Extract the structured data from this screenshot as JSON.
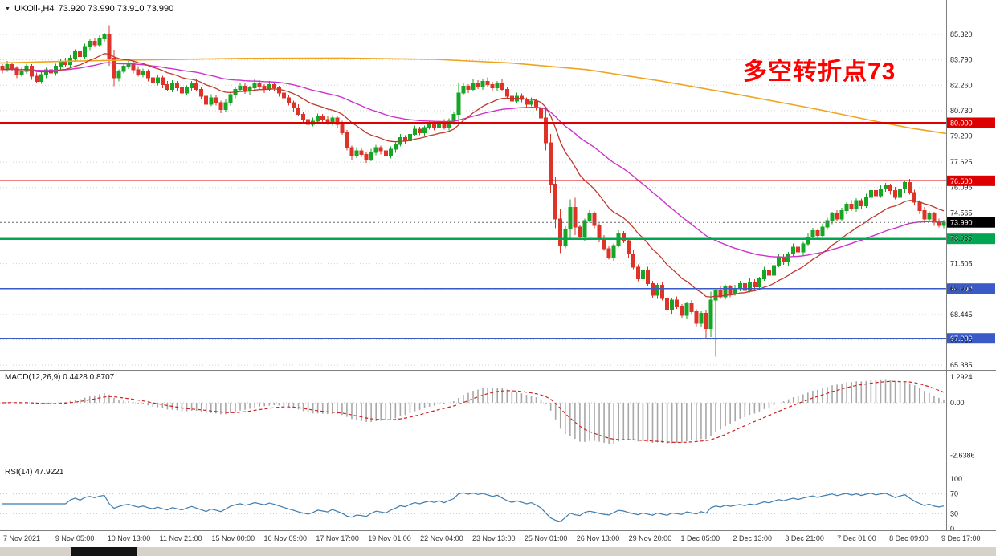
{
  "title": {
    "symbol_timeframe": "UKOil-,H4",
    "ohlc_text": "73.920 73.990 73.910 73.990"
  },
  "annotation": {
    "text": "多空转折点73",
    "color": "#ff0000"
  },
  "price_axis": {
    "ticks": [
      {
        "label": "85.320",
        "value": 85.32
      },
      {
        "label": "83.790",
        "value": 83.79
      },
      {
        "label": "82.260",
        "value": 82.26
      },
      {
        "label": "80.730",
        "value": 80.73
      },
      {
        "label": "79.200",
        "value": 79.2
      },
      {
        "label": "77.625",
        "value": 77.625
      },
      {
        "label": "76.095",
        "value": 76.095
      },
      {
        "label": "74.565",
        "value": 74.565
      },
      {
        "label": "73.035",
        "value": 73.035
      },
      {
        "label": "71.505",
        "value": 71.505
      },
      {
        "label": "69.975",
        "value": 69.975
      },
      {
        "label": "68.445",
        "value": 68.445
      },
      {
        "label": "66.915",
        "value": 66.915
      },
      {
        "label": "65.385",
        "value": 65.385
      }
    ]
  },
  "levels": [
    {
      "label": "80.000",
      "value": 80.0,
      "color": "#dd0000",
      "width": 1.6
    },
    {
      "label": "76.500",
      "value": 76.5,
      "color": "#dd0000",
      "width": 1.6
    },
    {
      "label": "73.000",
      "value": 73.0,
      "color": "#00a651",
      "width": 2.6
    },
    {
      "label": "70.000",
      "value": 70.0,
      "color": "#3a5bc7",
      "width": 1.8
    },
    {
      "label": "67.000",
      "value": 67.0,
      "color": "#3a5bc7",
      "width": 1.8
    }
  ],
  "current_price": {
    "label": "73.990",
    "value": 73.99,
    "bg": "#000000",
    "fg": "#ffffff"
  },
  "time_axis": {
    "labels": [
      "7 Nov 2021",
      "9 Nov 05:00",
      "10 Nov 13:00",
      "11 Nov 21:00",
      "15 Nov 00:00",
      "16 Nov 09:00",
      "17 Nov 17:00",
      "19 Nov 01:00",
      "22 Nov 04:00",
      "23 Nov 13:00",
      "25 Nov 01:00",
      "26 Nov 13:00",
      "29 Nov 20:00",
      "1 Dec 05:00",
      "2 Dec 13:00",
      "3 Dec 21:00",
      "7 Dec 01:00",
      "8 Dec 09:00",
      "9 Dec 17:00"
    ]
  },
  "indicators": {
    "macd": {
      "text": "MACD(12,26,9) 0.4428 0.8707",
      "params": [
        12,
        26,
        9
      ],
      "value": 0.4428,
      "signal": 0.8707,
      "axis": [
        {
          "label": "1.2924",
          "value": 1.2924
        },
        {
          "label": "0.00",
          "value": 0
        },
        {
          "label": "-2.6386",
          "value": -2.6386
        }
      ],
      "histogram_color": "#a8a8a8",
      "signal_color": "#d02020"
    },
    "rsi": {
      "text": "RSI(14) 47.9221",
      "period": 14,
      "value": 47.9221,
      "axis": [
        {
          "label": "100",
          "value": 100
        },
        {
          "label": "70",
          "value": 70
        },
        {
          "label": "30",
          "value": 30
        },
        {
          "label": "0",
          "value": 0
        }
      ],
      "level_lines": [
        70,
        30
      ],
      "line_color": "#3f7cad"
    }
  },
  "chart_data": {
    "type": "candlestick",
    "symbol": "UKOil-",
    "timeframe": "H4",
    "current_ohlc": {
      "open": 73.92,
      "high": 73.99,
      "low": 73.91,
      "close": 73.99
    },
    "price_range": [
      65.1,
      87.4
    ],
    "first_open": 83.4,
    "closes": [
      83.2,
      83.5,
      83.3,
      82.9,
      83.1,
      83.4,
      82.8,
      82.5,
      82.9,
      83.2,
      83.0,
      83.4,
      83.7,
      83.5,
      83.9,
      84.3,
      84.0,
      84.6,
      84.9,
      84.7,
      85.1,
      85.3,
      83.9,
      82.7,
      83.1,
      83.4,
      83.6,
      83.2,
      82.9,
      83.1,
      82.7,
      82.4,
      82.7,
      82.3,
      82.0,
      82.4,
      82.1,
      81.8,
      82.1,
      82.4,
      82.0,
      81.6,
      81.1,
      81.5,
      81.2,
      80.8,
      81.2,
      81.7,
      82.0,
      82.2,
      81.9,
      82.1,
      82.4,
      82.2,
      82.0,
      82.3,
      82.1,
      81.8,
      81.5,
      81.2,
      80.9,
      80.5,
      80.2,
      79.9,
      80.1,
      80.4,
      80.2,
      80.0,
      80.3,
      79.9,
      79.4,
      78.5,
      78.0,
      78.3,
      78.1,
      77.8,
      78.2,
      78.5,
      78.3,
      78.0,
      78.4,
      78.7,
      79.1,
      78.9,
      79.3,
      79.6,
      79.4,
      79.7,
      79.9,
      79.7,
      80.0,
      79.7,
      80.1,
      80.5,
      81.8,
      82.2,
      82.0,
      82.4,
      82.2,
      82.5,
      82.3,
      82.1,
      82.4,
      82.0,
      81.6,
      81.3,
      81.6,
      81.4,
      81.1,
      81.3,
      80.9,
      80.3,
      78.8,
      76.3,
      74.2,
      72.6,
      73.6,
      74.9,
      73.7,
      73.1,
      74.1,
      74.5,
      73.8,
      73.0,
      72.4,
      71.9,
      72.6,
      73.3,
      72.9,
      72.1,
      71.3,
      70.6,
      71.1,
      70.3,
      69.6,
      70.2,
      69.4,
      68.7,
      69.3,
      68.9,
      68.4,
      69.1,
      68.6,
      67.9,
      68.5,
      67.6,
      69.3,
      69.9,
      69.5,
      70.1,
      69.7,
      70.0,
      70.3,
      69.9,
      70.4,
      70.1,
      70.6,
      71.1,
      70.8,
      71.4,
      71.9,
      71.6,
      72.1,
      72.5,
      72.2,
      72.7,
      73.1,
      73.5,
      73.2,
      73.7,
      74.1,
      74.5,
      74.2,
      74.7,
      75.1,
      74.8,
      75.3,
      75.0,
      75.5,
      75.9,
      75.6,
      76.0,
      76.2,
      75.9,
      75.5,
      76.0,
      76.4,
      75.8,
      75.2,
      74.7,
      74.2,
      74.5,
      74.0,
      73.8,
      73.99
    ],
    "low_overrides": {
      "145": 67.0,
      "147": 65.9
    },
    "colors": {
      "up": "#16a524",
      "down": "#dd3329"
    },
    "overlays": {
      "ma_fast": {
        "type": "ema",
        "period": 16,
        "color": "#c0392b"
      },
      "ma_mid": {
        "type": "ema",
        "period": 48,
        "color": "#cc33cc"
      },
      "ma_slow": {
        "color": "#efa423",
        "points": [
          [
            0,
            83.6
          ],
          [
            0.08,
            83.72
          ],
          [
            0.16,
            83.8
          ],
          [
            0.26,
            83.88
          ],
          [
            0.36,
            83.9
          ],
          [
            0.46,
            83.82
          ],
          [
            0.54,
            83.6
          ],
          [
            0.62,
            83.2
          ],
          [
            0.7,
            82.5
          ],
          [
            0.78,
            81.7
          ],
          [
            0.86,
            80.85
          ],
          [
            0.92,
            80.15
          ],
          [
            0.96,
            79.7
          ],
          [
            1,
            79.35
          ]
        ]
      }
    }
  }
}
